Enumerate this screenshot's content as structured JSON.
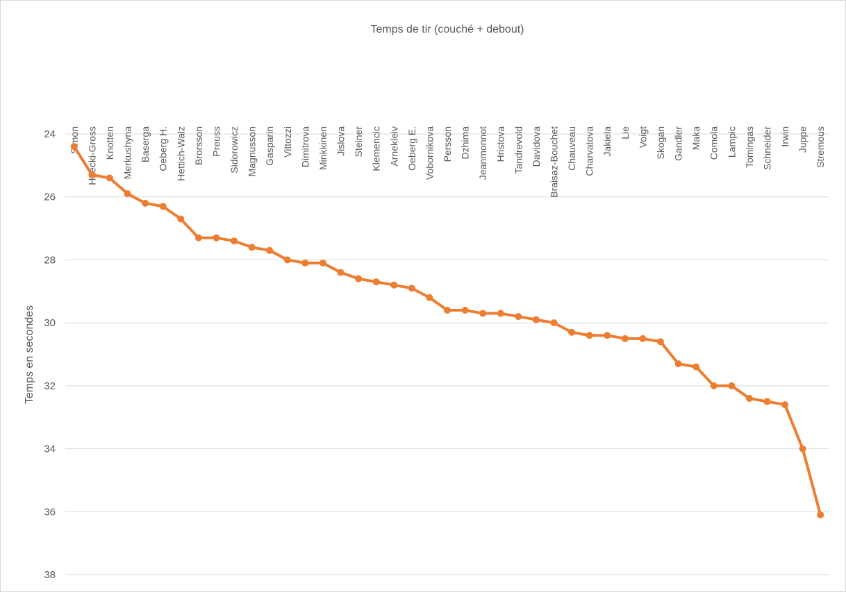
{
  "chart_data": {
    "type": "line",
    "title": "Temps de tir (couché + debout)",
    "y_label": "Temps en secondes",
    "categories": [
      "Simon",
      "Haecki-Gross",
      "Knotten",
      "Merkushyna",
      "Baserga",
      "Oeberg H.",
      "Hettich-Walz",
      "Brorsson",
      "Preuss",
      "Sidorowicz",
      "Magnusson",
      "Gasparin",
      "Vittozzi",
      "Dimitrova",
      "Minkkinen",
      "Jislova",
      "Steiner",
      "Klemencic",
      "Arnekleiv",
      "Oeberg E.",
      "Vobornikova",
      "Persson",
      "Dzhima",
      "Jeanmonnot",
      "Hristova",
      "Tandrevold",
      "Davidova",
      "Braisaz-Bouchet",
      "Chauveau",
      "Charvatova",
      "Jakiela",
      "Lie",
      "Voigt",
      "Skogan",
      "Gandler",
      "Maka",
      "Comola",
      "Lampic",
      "Tomingas",
      "Schneider",
      "Irwin",
      "Juppe",
      "Stremous"
    ],
    "values": [
      24.4,
      25.3,
      25.4,
      25.9,
      26.2,
      26.3,
      26.7,
      27.3,
      27.3,
      27.4,
      27.6,
      27.7,
      28.0,
      28.1,
      28.1,
      28.4,
      28.6,
      28.7,
      28.8,
      28.9,
      29.2,
      29.6,
      29.6,
      29.7,
      29.7,
      29.8,
      29.9,
      30.0,
      30.3,
      30.4,
      30.4,
      30.5,
      30.5,
      30.6,
      31.3,
      31.4,
      32.0,
      32.0,
      32.4,
      32.5,
      32.6,
      34.0,
      36.1
    ],
    "color": "#ed7d31",
    "ylim": [
      24,
      38
    ],
    "yticks": [
      24,
      26,
      28,
      30,
      32,
      34,
      36,
      38
    ],
    "y_reversed": true,
    "grid": true
  }
}
